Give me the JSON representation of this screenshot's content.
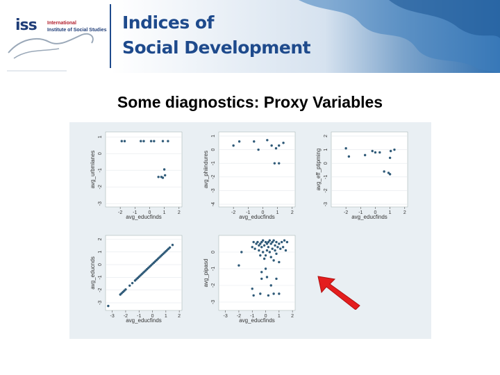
{
  "header": {
    "logo_word": "iss",
    "logo_line1": "International",
    "logo_line2": "Institute of Social Studies",
    "title_line1": "Indices of",
    "title_line2": "Social Development",
    "colors": {
      "brand_blue": "#1e4a8c",
      "banner_blue": "#2f6fb0",
      "logo_red": "#b21f2d"
    }
  },
  "slide": {
    "title": "Some diagnostics: Proxy Variables"
  },
  "annotation": {
    "icon": "red-arrow-icon",
    "color": "#e41e1e"
  },
  "chart_data": [
    {
      "type": "scatter",
      "xlabel": "avg_educfinds",
      "ylabel": "avg_urbmlanes",
      "xticks": [
        -2,
        -1,
        0,
        1,
        2
      ],
      "yticks": [
        -3,
        -2,
        -1,
        0,
        1
      ],
      "xlim": [
        -3,
        2.2
      ],
      "ylim": [
        -3.2,
        1.3
      ],
      "points": [
        [
          -1.9,
          0.75
        ],
        [
          -1.7,
          0.75
        ],
        [
          -0.6,
          0.75
        ],
        [
          -0.4,
          0.75
        ],
        [
          0.1,
          0.75
        ],
        [
          0.3,
          0.75
        ],
        [
          0.9,
          0.75
        ],
        [
          1.25,
          0.75
        ],
        [
          0.6,
          -1.4
        ],
        [
          0.8,
          -1.4
        ],
        [
          0.9,
          -1.45
        ],
        [
          1.0,
          -0.95
        ],
        [
          1.05,
          -1.3
        ]
      ]
    },
    {
      "type": "scatter",
      "xlabel": "avg_educfinds",
      "ylabel": "avg_phiindures",
      "xticks": [
        -2,
        -1,
        0,
        1,
        2
      ],
      "yticks": [
        -4,
        -3,
        -2,
        -1,
        0,
        1
      ],
      "xlim": [
        -3,
        2.2
      ],
      "ylim": [
        -4.2,
        1.3
      ],
      "points": [
        [
          -2.0,
          0.3
        ],
        [
          -1.6,
          0.6
        ],
        [
          -0.6,
          0.6
        ],
        [
          -0.3,
          0.0
        ],
        [
          0.3,
          0.7
        ],
        [
          0.6,
          0.3
        ],
        [
          0.8,
          -1.0
        ],
        [
          0.9,
          0.1
        ],
        [
          1.1,
          -1.0
        ],
        [
          1.1,
          0.3
        ],
        [
          1.4,
          0.5
        ]
      ]
    },
    {
      "type": "scatter",
      "xlabel": "avg_educfinds",
      "ylabel": "avg_eff_ptipming",
      "xticks": [
        -2,
        -1,
        0,
        1,
        2
      ],
      "yticks": [
        -3,
        -2,
        -1,
        0,
        1,
        2
      ],
      "xlim": [
        -3,
        2.2
      ],
      "ylim": [
        -3.2,
        2.3
      ],
      "points": [
        [
          -2.0,
          1.1
        ],
        [
          -1.8,
          0.5
        ],
        [
          -0.7,
          0.6
        ],
        [
          -0.2,
          0.9
        ],
        [
          0.0,
          0.8
        ],
        [
          0.3,
          0.8
        ],
        [
          0.6,
          -0.6
        ],
        [
          0.9,
          -0.7
        ],
        [
          1.0,
          -0.8
        ],
        [
          1.05,
          0.9
        ],
        [
          1.3,
          1.0
        ],
        [
          1.0,
          0.4
        ]
      ]
    },
    {
      "type": "scatter",
      "xlabel": "avg_educfinds",
      "ylabel": "avg_educnds",
      "xticks": [
        -3,
        -2,
        -1,
        0,
        1,
        2
      ],
      "yticks": [
        -3,
        -2,
        -1,
        0,
        1,
        2
      ],
      "xlim": [
        -3.5,
        2.2
      ],
      "ylim": [
        -3.6,
        2.3
      ],
      "points": "diagonal"
    },
    {
      "type": "scatter",
      "xlabel": "avg_educfinds",
      "ylabel": "avg_pipasd",
      "xticks": [
        -3,
        -2,
        -1,
        0,
        1,
        2
      ],
      "yticks": [
        -3,
        -2,
        -1,
        0
      ],
      "xlim": [
        -3.5,
        2.2
      ],
      "ylim": [
        -3.5,
        1.0
      ],
      "points": [
        [
          -2.0,
          -0.8
        ],
        [
          -1.8,
          0.0
        ],
        [
          -1.0,
          0.3
        ],
        [
          -0.9,
          0.6
        ],
        [
          -0.8,
          0.2
        ],
        [
          -0.7,
          0.5
        ],
        [
          -0.6,
          0.6
        ],
        [
          -0.5,
          0.4
        ],
        [
          -0.5,
          0.1
        ],
        [
          -0.4,
          0.5
        ],
        [
          -0.4,
          -0.2
        ],
        [
          -0.3,
          0.3
        ],
        [
          -0.3,
          0.6
        ],
        [
          -0.2,
          0.7
        ],
        [
          -0.2,
          0.0
        ],
        [
          -0.1,
          0.4
        ],
        [
          -0.1,
          -0.4
        ],
        [
          0.0,
          0.6
        ],
        [
          0.0,
          -0.2
        ],
        [
          0.1,
          0.5
        ],
        [
          0.1,
          0.1
        ],
        [
          0.2,
          0.6
        ],
        [
          0.2,
          0.3
        ],
        [
          0.3,
          0.7
        ],
        [
          0.3,
          0.0
        ],
        [
          0.4,
          0.5
        ],
        [
          0.4,
          -0.3
        ],
        [
          0.5,
          0.6
        ],
        [
          0.5,
          0.2
        ],
        [
          0.6,
          0.7
        ],
        [
          0.6,
          -0.5
        ],
        [
          0.7,
          0.4
        ],
        [
          0.7,
          0.1
        ],
        [
          0.8,
          0.6
        ],
        [
          0.8,
          -0.1
        ],
        [
          0.9,
          0.3
        ],
        [
          1.0,
          0.5
        ],
        [
          1.0,
          -0.6
        ],
        [
          1.1,
          0.2
        ],
        [
          1.2,
          0.6
        ],
        [
          1.3,
          0.3
        ],
        [
          1.4,
          0.7
        ],
        [
          1.5,
          0.1
        ],
        [
          1.6,
          0.6
        ],
        [
          -1.0,
          -2.2
        ],
        [
          -0.9,
          -2.6
        ],
        [
          -0.4,
          -2.5
        ],
        [
          -0.3,
          -1.2
        ],
        [
          0.0,
          -1.0
        ],
        [
          0.2,
          -2.6
        ],
        [
          0.4,
          -2.0
        ],
        [
          0.6,
          -2.5
        ],
        [
          0.8,
          -1.6
        ],
        [
          1.0,
          -2.5
        ],
        [
          -0.3,
          -1.6
        ],
        [
          0.1,
          -1.5
        ]
      ]
    }
  ]
}
